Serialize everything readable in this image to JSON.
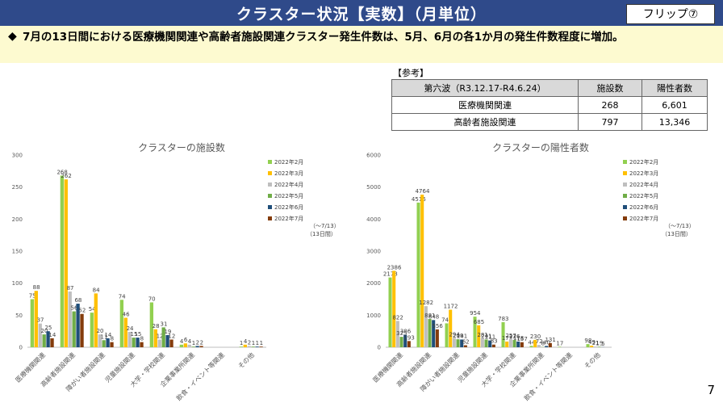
{
  "header": {
    "title": "クラスター状況【実数】（月単位）",
    "flip_label": "フリップ⑦"
  },
  "banner": {
    "bullet": "◆",
    "text": "7月の13日間における医療機関関連や高齢者施設関連クラスター発生件数は、5月、6月の各1か月の発生件数程度に増加。"
  },
  "reference": {
    "label": "【参考】",
    "headers": [
      "第六波（R3.12.17-R4.6.24）",
      "施設数",
      "陽性者数"
    ],
    "rows": [
      [
        "医療機関関連",
        "268",
        "6,601"
      ],
      [
        "高齢者施設関連",
        "797",
        "13,346"
      ]
    ]
  },
  "page_number": "7",
  "colors": {
    "title_bar": "#2f4a8a",
    "banner": "#fdfad0",
    "series": [
      "#92d050",
      "#ffc000",
      "#bfbfbf",
      "#70ad47",
      "#1f4e79",
      "#843c0c"
    ]
  },
  "chart_data": [
    {
      "type": "bar",
      "title": "クラスターの施設数",
      "ylim": [
        0,
        300
      ],
      "yticks": [
        0,
        50,
        100,
        150,
        200,
        250,
        300
      ],
      "categories": [
        "医療機関関連",
        "高齢者施設関連",
        "障がい者施設関連",
        "児童施設関連",
        "大学・学校関連",
        "企業事業所関連",
        "飲食・イベント等関連",
        "その他"
      ],
      "series": [
        {
          "name": "2022年2月",
          "values": [
            75,
            268,
            54,
            74,
            70,
            4,
            0,
            1
          ]
        },
        {
          "name": "2022年3月",
          "values": [
            88,
            262,
            84,
            46,
            28,
            6,
            0,
            4
          ]
        },
        {
          "name": "2022年4月",
          "values": [
            37,
            87,
            20,
            24,
            12,
            4,
            0,
            2
          ]
        },
        {
          "name": "2022年5月",
          "values": [
            20,
            56,
            11,
            15,
            31,
            1,
            0,
            1
          ]
        },
        {
          "name": "2022年6月",
          "values": [
            25,
            68,
            14,
            15,
            19,
            2,
            0,
            1
          ]
        },
        {
          "name": "2022年7月",
          "values": [
            14,
            52,
            8,
            8,
            12,
            2,
            0,
            1
          ]
        }
      ],
      "legend_note": "（～7/13）",
      "legend_note2": "（13日間）",
      "legend": "right",
      "grid": false
    },
    {
      "type": "bar",
      "title": "クラスターの陽性者数",
      "ylim": [
        0,
        6000
      ],
      "yticks": [
        0,
        1000,
        2000,
        3000,
        4000,
        5000,
        6000
      ],
      "categories": [
        "医療機関関連",
        "高齢者施設関連",
        "障がい者施設関連",
        "児童施設関連",
        "大学・学校関連",
        "企業事業所関連",
        "飲食・イベント等関連",
        "その他"
      ],
      "series": [
        {
          "name": "2022年2月",
          "values": [
            2178,
            4516,
            746,
            954,
            783,
            44,
            17,
            98
          ]
        },
        {
          "name": "2022年3月",
          "values": [
            2386,
            4764,
            1172,
            685,
            177,
            230,
            0,
            49
          ]
        },
        {
          "name": "2022年4月",
          "values": [
            822,
            1282,
            294,
            281,
            257,
            72,
            0,
            21
          ]
        },
        {
          "name": "2022年5月",
          "values": [
            325,
            881,
            249,
            241,
            226,
            8,
            0,
            15
          ]
        },
        {
          "name": "2022年6月",
          "values": [
            386,
            848,
            241,
            211,
            178,
            40,
            0,
            5
          ]
        },
        {
          "name": "2022年7月",
          "values": [
            193,
            556,
            62,
            83,
            157,
            131,
            0,
            0
          ]
        }
      ],
      "legend_note": "（～7/13）",
      "legend_note2": "（13日間）",
      "legend": "right",
      "grid": false
    }
  ]
}
